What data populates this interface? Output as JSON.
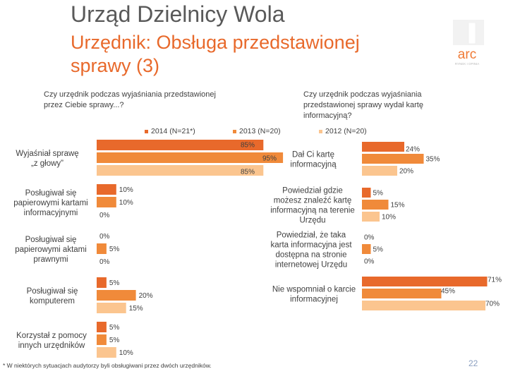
{
  "title": "Urząd Dzielnicy Wola",
  "subtitle": "Urzędnik: Obsługa przedstawionej sprawy (3)",
  "question_left": "Czy urzędnik podczas wyjaśniania przedstawionej przez Ciebie sprawy...?",
  "question_right": "Czy urzędnik podczas wyjaśniania przedstawionej sprawy wydał kartę informacyjną?",
  "logo_text": "arc",
  "logo_subtext": "RYNEK I OPINIA",
  "footnote": "* W niektórych sytuacjach audytorzy byli obsługiwani przez dwóch urzędników.",
  "page_number": "22",
  "colors": {
    "s2014": "#e8692b",
    "s2013": "#f08a3a",
    "s2012": "#fbc58f"
  },
  "chart_data": [
    {
      "type": "bar",
      "orientation": "horizontal",
      "title": "Czy urzędnik podczas wyjaśniania przedstawionej przez Ciebie sprawy...?",
      "xlim": [
        0,
        100
      ],
      "categories": [
        "Wyjaśniał sprawę „z głowy”",
        "Posługiwał się papierowymi kartami informacyjnymi",
        "Posługiwał się papierowymi aktami prawnymi",
        "Posługiwał się komputerem",
        "Korzystał z pomocy innych urzędników"
      ],
      "series": [
        {
          "name": "2014 (N=21*)",
          "values": [
            85,
            10,
            0,
            5,
            5
          ],
          "labels": [
            "85%",
            "10%",
            "0%",
            "5%",
            "5%"
          ]
        },
        {
          "name": "2013 (N=20)",
          "values": [
            95,
            10,
            5,
            20,
            5
          ],
          "labels": [
            "95%",
            "10%",
            "5%",
            "20%",
            "5%"
          ]
        },
        {
          "name": "2012 (N=20)",
          "values": [
            85,
            0,
            0,
            15,
            10
          ],
          "labels": [
            "85%",
            "0%",
            "0%",
            "15%",
            "10%"
          ]
        }
      ]
    },
    {
      "type": "bar",
      "orientation": "horizontal",
      "title": "Czy urzędnik podczas wyjaśniania przedstawionej sprawy wydał kartę informacyjną?",
      "xlim": [
        0,
        100
      ],
      "categories": [
        "Dał Ci kartę informacyjną",
        "Powiedział gdzie możesz znaleźć kartę informacyjną na terenie Urzędu",
        "Powiedział, że taka karta informacyjna jest dostępna na stronie internetowej Urzędu",
        "Nie wspomniał o karcie informacyjnej"
      ],
      "series": [
        {
          "name": "2014 (N=21*)",
          "values": [
            24,
            5,
            0,
            71
          ],
          "labels": [
            "24%",
            "5%",
            "0%",
            "71%"
          ]
        },
        {
          "name": "2013 (N=20)",
          "values": [
            35,
            15,
            5,
            45
          ],
          "labels": [
            "35%",
            "15%",
            "5%",
            "45%"
          ]
        },
        {
          "name": "2012 (N=20)",
          "values": [
            20,
            10,
            0,
            70
          ],
          "labels": [
            "20%",
            "10%",
            "0%",
            "70%"
          ]
        }
      ]
    }
  ]
}
